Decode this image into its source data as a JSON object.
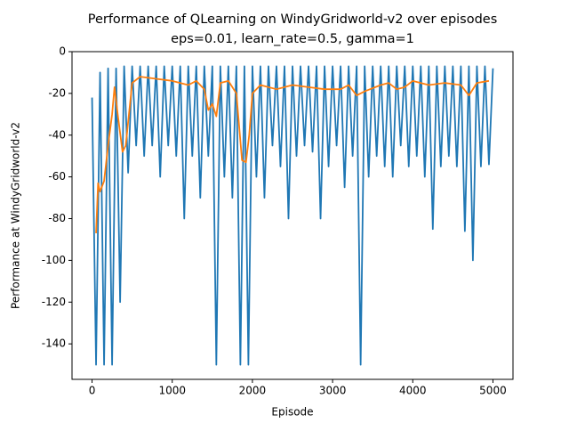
{
  "chart_data": {
    "type": "line",
    "title": "Performance of QLearning on WindyGridworld-v2 over episodes",
    "subtitle": "eps=0.01, learn_rate=0.5, gamma=1",
    "x_label": "Episode",
    "y_label": "Performance at WindyGridworld-v2",
    "xlim": [
      -250,
      5250
    ],
    "ylim": [
      -157,
      0
    ],
    "xticks": [
      0,
      1000,
      2000,
      3000,
      4000,
      5000
    ],
    "yticks": [
      0,
      -20,
      -40,
      -60,
      -80,
      -100,
      -120,
      -140
    ],
    "series": [
      {
        "color": "#1f77b4",
        "x": [
          0,
          50,
          100,
          150,
          200,
          250,
          300,
          350,
          400,
          450,
          500,
          550,
          600,
          650,
          700,
          750,
          800,
          850,
          900,
          950,
          1000,
          1050,
          1100,
          1150,
          1200,
          1250,
          1300,
          1350,
          1400,
          1450,
          1500,
          1550,
          1600,
          1650,
          1700,
          1750,
          1800,
          1850,
          1900,
          1950,
          2000,
          2050,
          2100,
          2150,
          2200,
          2250,
          2300,
          2350,
          2400,
          2450,
          2500,
          2550,
          2600,
          2650,
          2700,
          2750,
          2800,
          2850,
          2900,
          2950,
          3000,
          3050,
          3100,
          3150,
          3200,
          3250,
          3300,
          3350,
          3400,
          3450,
          3500,
          3550,
          3600,
          3650,
          3700,
          3750,
          3800,
          3850,
          3900,
          3950,
          4000,
          4050,
          4100,
          4150,
          4200,
          4250,
          4300,
          4350,
          4400,
          4450,
          4500,
          4550,
          4600,
          4650,
          4700,
          4750,
          4800,
          4850,
          4900,
          4950,
          5000
        ],
        "values": [
          -22,
          -150,
          -10,
          -150,
          -8,
          -150,
          -8,
          -120,
          -7,
          -58,
          -7,
          -45,
          -7,
          -50,
          -7,
          -45,
          -7,
          -60,
          -7,
          -45,
          -7,
          -50,
          -7,
          -80,
          -7,
          -50,
          -7,
          -70,
          -7,
          -50,
          -7,
          -150,
          -7,
          -60,
          -7,
          -70,
          -7,
          -150,
          -7,
          -150,
          -7,
          -60,
          -7,
          -70,
          -7,
          -45,
          -7,
          -55,
          -7,
          -80,
          -7,
          -50,
          -7,
          -45,
          -7,
          -48,
          -7,
          -80,
          -7,
          -55,
          -7,
          -45,
          -7,
          -65,
          -7,
          -50,
          -7,
          -150,
          -7,
          -60,
          -7,
          -50,
          -7,
          -55,
          -7,
          -60,
          -7,
          -45,
          -7,
          -55,
          -7,
          -50,
          -7,
          -60,
          -7,
          -85,
          -7,
          -55,
          -7,
          -50,
          -7,
          -55,
          -7,
          -86,
          -7,
          -100,
          -7,
          -55,
          -7,
          -54,
          -8
        ]
      },
      {
        "color": "#ff7f0e",
        "x": [
          50,
          75,
          100,
          150,
          200,
          250,
          280,
          320,
          380,
          420,
          500,
          600,
          800,
          1000,
          1200,
          1300,
          1400,
          1450,
          1500,
          1550,
          1600,
          1700,
          1800,
          1870,
          1920,
          1960,
          2000,
          2100,
          2300,
          2500,
          2700,
          2900,
          3100,
          3200,
          3300,
          3400,
          3600,
          3700,
          3800,
          3900,
          4000,
          4200,
          4400,
          4600,
          4700,
          4800,
          4950
        ],
        "values": [
          -87,
          -63,
          -67,
          -62,
          -45,
          -30,
          -17,
          -30,
          -48,
          -45,
          -15,
          -12,
          -13,
          -14,
          -16,
          -14,
          -18,
          -28,
          -25,
          -31,
          -15,
          -14,
          -20,
          -52,
          -53,
          -40,
          -20,
          -16,
          -18,
          -16,
          -17,
          -18,
          -18,
          -16,
          -21,
          -19,
          -16,
          -15,
          -18,
          -17,
          -14,
          -16,
          -15,
          -16,
          -21,
          -15,
          -14
        ]
      }
    ]
  }
}
